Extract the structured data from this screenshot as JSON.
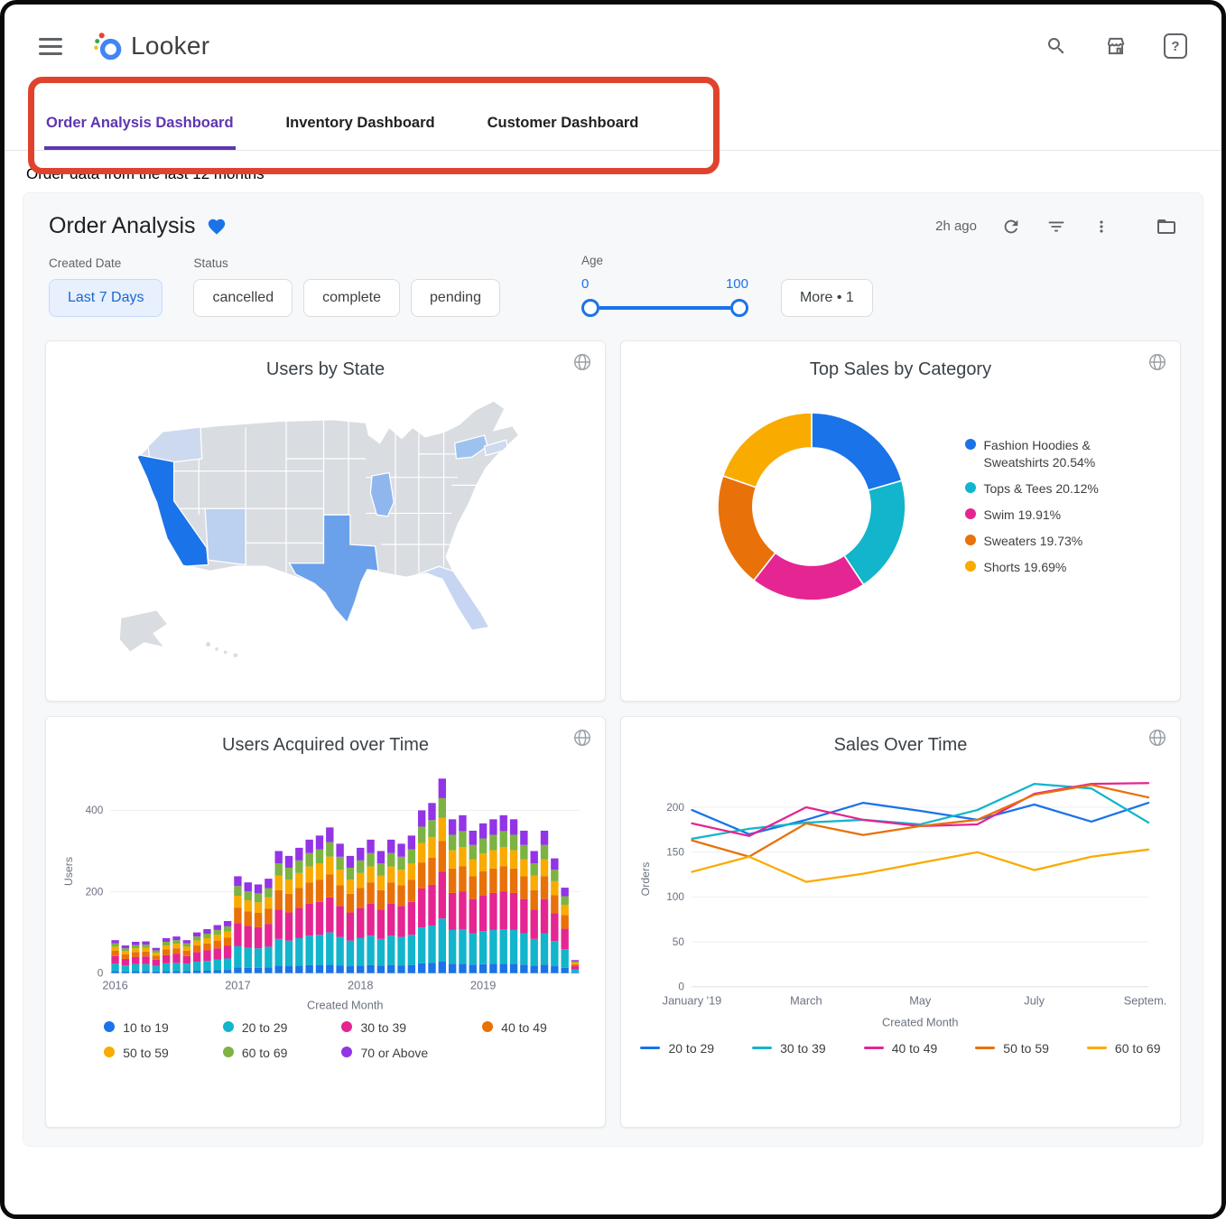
{
  "topbar": {
    "logo_text": "Looker",
    "help_glyph": "?"
  },
  "tabs": [
    {
      "label": "Order Analysis Dashboard",
      "active": true
    },
    {
      "label": "Inventory Dashboard",
      "active": false
    },
    {
      "label": "Customer Dashboard",
      "active": false
    }
  ],
  "subtitle": "Order data from the last 12 months",
  "dashboard": {
    "title": "Order Analysis",
    "updated": "2h ago",
    "filters": {
      "created_date": {
        "label": "Created Date",
        "value": "Last 7 Days"
      },
      "status": {
        "label": "Status",
        "options": [
          "cancelled",
          "complete",
          "pending"
        ]
      },
      "age": {
        "label": "Age",
        "min": "0",
        "max": "100"
      },
      "more_label": "More • 1"
    }
  },
  "colors": {
    "accent_blue": "#1a73e8",
    "active_tab_purple": "#5e35b1",
    "annotation_red": "#e0432d"
  },
  "chart_data": [
    {
      "id": "users_by_state",
      "type": "choropleth",
      "title": "Users by State",
      "region": "United States",
      "base_color": "#d9dce1",
      "states": [
        {
          "name": "california",
          "shade": "#1a73e8"
        },
        {
          "name": "texas",
          "shade": "#6ba1ea"
        },
        {
          "name": "new-york",
          "shade": "#9ec2f0"
        },
        {
          "name": "illinois",
          "shade": "#8fb7ee"
        },
        {
          "name": "arizona",
          "shade": "#bcd0f0"
        },
        {
          "name": "florida",
          "shade": "#c6d6f2"
        },
        {
          "name": "washington",
          "shade": "#cdd9ee"
        },
        {
          "name": "massachusetts",
          "shade": "#cdd9ee"
        }
      ]
    },
    {
      "id": "top_sales_by_category",
      "type": "pie",
      "title": "Top Sales by Category",
      "labels": [
        "Fashion Hoodies & Sweatshirts",
        "Tops & Tees",
        "Swim",
        "Sweaters",
        "Shorts"
      ],
      "values": [
        20.54,
        20.12,
        19.91,
        19.73,
        19.69
      ],
      "colors": [
        "#1a73e8",
        "#12b5cb",
        "#e52592",
        "#e8710a",
        "#f9ab00"
      ],
      "legend": [
        {
          "label": "Fashion Hoodies & Sweatshirts 20.54%",
          "color": "#1a73e8"
        },
        {
          "label": "Tops & Tees 20.12%",
          "color": "#12b5cb"
        },
        {
          "label": "Swim 19.91%",
          "color": "#e52592"
        },
        {
          "label": "Sweaters 19.73%",
          "color": "#e8710a"
        },
        {
          "label": "Shorts 19.69%",
          "color": "#f9ab00"
        }
      ],
      "legend_position": "right"
    },
    {
      "id": "users_acquired_over_time",
      "type": "bar",
      "stacked": true,
      "title": "Users Acquired over Time",
      "xlabel": "Created Month",
      "ylabel": "Users",
      "ylim": [
        0,
        500
      ],
      "y_ticks": [
        0,
        200,
        400
      ],
      "x_ticks": [
        {
          "index": 0,
          "label": "2016"
        },
        {
          "index": 12,
          "label": "2017"
        },
        {
          "index": 24,
          "label": "2018"
        },
        {
          "index": 36,
          "label": "2019"
        }
      ],
      "categories": [
        "2016-01",
        "2016-02",
        "2016-03",
        "2016-04",
        "2016-05",
        "2016-06",
        "2016-07",
        "2016-08",
        "2016-09",
        "2016-10",
        "2016-11",
        "2016-12",
        "2017-01",
        "2017-02",
        "2017-03",
        "2017-04",
        "2017-05",
        "2017-06",
        "2017-07",
        "2017-08",
        "2017-09",
        "2017-10",
        "2017-11",
        "2017-12",
        "2018-01",
        "2018-02",
        "2018-03",
        "2018-04",
        "2018-05",
        "2018-06",
        "2018-07",
        "2018-08",
        "2018-09",
        "2018-10",
        "2018-11",
        "2018-12",
        "2019-01",
        "2019-02",
        "2019-03",
        "2019-04",
        "2019-05",
        "2019-06",
        "2019-07",
        "2019-08",
        "2019-09",
        "2019-10"
      ],
      "series": [
        {
          "name": "10 to 19",
          "color": "#1a73e8",
          "values": [
            5,
            4,
            5,
            5,
            4,
            5,
            5,
            5,
            6,
            6,
            7,
            8,
            14,
            13,
            13,
            14,
            18,
            17,
            18,
            20,
            20,
            21,
            19,
            17,
            18,
            20,
            18,
            20,
            19,
            20,
            24,
            25,
            29,
            23,
            23,
            21,
            22,
            23,
            23,
            23,
            21,
            18,
            21,
            17,
            13,
            2
          ]
        },
        {
          "name": "20 to 29",
          "color": "#12b5cb",
          "values": [
            18,
            15,
            17,
            17,
            14,
            19,
            20,
            18,
            22,
            24,
            26,
            28,
            52,
            49,
            48,
            51,
            66,
            63,
            68,
            72,
            74,
            79,
            70,
            63,
            68,
            72,
            66,
            72,
            70,
            74,
            88,
            92,
            105,
            83,
            85,
            77,
            81,
            83,
            85,
            83,
            77,
            66,
            77,
            62,
            46,
            7
          ]
        },
        {
          "name": "30 to 39",
          "color": "#e52592",
          "values": [
            19,
            16,
            18,
            19,
            15,
            20,
            22,
            19,
            24,
            26,
            28,
            31,
            57,
            54,
            52,
            56,
            72,
            69,
            74,
            79,
            81,
            86,
            76,
            69,
            74,
            79,
            72,
            79,
            76,
            81,
            96,
            100,
            115,
            91,
            93,
            84,
            88,
            91,
            93,
            91,
            84,
            72,
            84,
            68,
            50,
            8
          ]
        },
        {
          "name": "40 to 49",
          "color": "#e8710a",
          "values": [
            13,
            11,
            12,
            12,
            10,
            14,
            14,
            13,
            16,
            17,
            19,
            20,
            38,
            36,
            35,
            37,
            48,
            46,
            49,
            52,
            54,
            57,
            51,
            46,
            49,
            52,
            48,
            52,
            51,
            54,
            64,
            67,
            76,
            60,
            62,
            56,
            59,
            60,
            62,
            60,
            56,
            48,
            56,
            45,
            34,
            5
          ]
        },
        {
          "name": "50 to 59",
          "color": "#f9ab00",
          "values": [
            10,
            8,
            9,
            9,
            7,
            10,
            11,
            10,
            12,
            13,
            14,
            15,
            29,
            27,
            26,
            28,
            36,
            35,
            37,
            39,
            41,
            43,
            38,
            35,
            37,
            39,
            36,
            39,
            38,
            41,
            48,
            50,
            57,
            45,
            47,
            42,
            44,
            45,
            47,
            45,
            42,
            36,
            42,
            34,
            25,
            4
          ]
        },
        {
          "name": "60 to 69",
          "color": "#7cb342",
          "values": [
            8,
            7,
            8,
            8,
            6,
            9,
            9,
            8,
            10,
            11,
            12,
            13,
            24,
            22,
            22,
            23,
            30,
            29,
            31,
            33,
            34,
            36,
            32,
            29,
            31,
            33,
            30,
            33,
            32,
            34,
            40,
            42,
            48,
            38,
            39,
            35,
            37,
            38,
            39,
            38,
            35,
            30,
            35,
            28,
            21,
            3
          ]
        },
        {
          "name": "70 or Above",
          "color": "#9334e6",
          "values": [
            8,
            7,
            8,
            8,
            6,
            9,
            9,
            8,
            10,
            11,
            12,
            13,
            24,
            22,
            22,
            23,
            30,
            29,
            31,
            33,
            34,
            36,
            32,
            29,
            31,
            33,
            30,
            33,
            32,
            34,
            40,
            42,
            48,
            38,
            39,
            35,
            37,
            38,
            39,
            38,
            35,
            30,
            35,
            28,
            21,
            3
          ]
        }
      ]
    },
    {
      "id": "sales_over_time",
      "type": "line",
      "title": "Sales Over Time",
      "xlabel": "Created Month",
      "ylabel": "Orders",
      "ylim": [
        0,
        240
      ],
      "y_ticks": [
        0,
        50,
        100,
        150,
        200
      ],
      "x": [
        "January '19",
        "February",
        "March",
        "April",
        "May",
        "June",
        "July",
        "August",
        "September"
      ],
      "x_ticks": [
        {
          "index": 0,
          "label": "January '19"
        },
        {
          "index": 2,
          "label": "March"
        },
        {
          "index": 4,
          "label": "May"
        },
        {
          "index": 6,
          "label": "July"
        },
        {
          "index": 8,
          "label": "Septem..."
        }
      ],
      "series": [
        {
          "name": "20 to 29",
          "color": "#1a73e8",
          "values": [
            197,
            170,
            186,
            205,
            196,
            186,
            203,
            184,
            205
          ]
        },
        {
          "name": "30 to 39",
          "color": "#12b5cb",
          "values": [
            165,
            176,
            183,
            186,
            181,
            197,
            226,
            221,
            183
          ]
        },
        {
          "name": "40 to 49",
          "color": "#e52592",
          "values": [
            182,
            168,
            200,
            186,
            179,
            181,
            215,
            226,
            227
          ]
        },
        {
          "name": "50 to 59",
          "color": "#e8710a",
          "values": [
            163,
            145,
            182,
            169,
            179,
            186,
            214,
            225,
            211
          ]
        },
        {
          "name": "60 to 69",
          "color": "#f9ab00",
          "values": [
            128,
            145,
            117,
            126,
            138,
            150,
            130,
            145,
            153
          ]
        }
      ]
    }
  ]
}
